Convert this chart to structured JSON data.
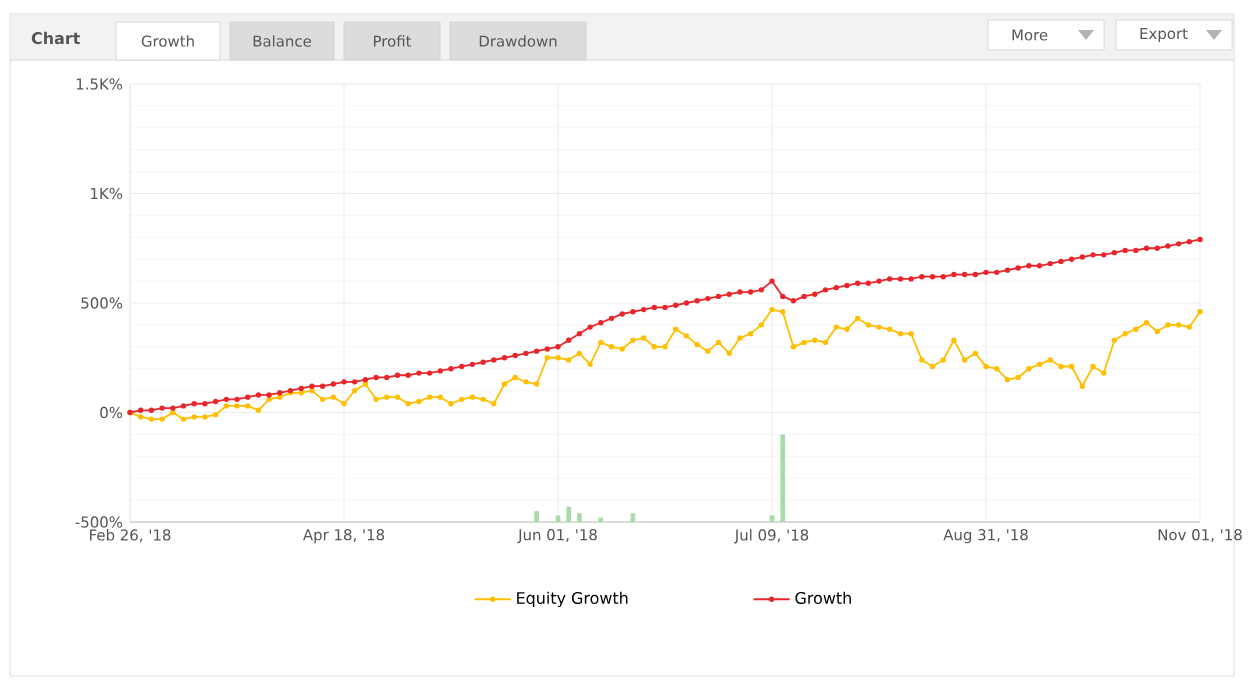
{
  "chart_data": {
    "type": "line",
    "title": "Chart",
    "annotations": [
      "Growth",
      "Balance",
      "Profit",
      "Drawdown",
      "More",
      "Export"
    ],
    "categories": [
      "Feb 26, '18",
      null,
      null,
      null,
      null,
      null,
      null,
      null,
      null,
      null,
      null,
      null,
      null,
      null,
      null,
      null,
      null,
      null,
      null,
      null,
      "Apr 18, '18",
      null,
      null,
      null,
      null,
      null,
      null,
      null,
      null,
      null,
      null,
      null,
      null,
      null,
      null,
      null,
      null,
      null,
      null,
      null,
      "Jun 01, '18",
      null,
      null,
      null,
      null,
      null,
      null,
      null,
      null,
      null,
      null,
      null,
      null,
      null,
      null,
      null,
      null,
      null,
      null,
      null,
      "Jul 09, '18",
      null,
      null,
      null,
      null,
      null,
      null,
      null,
      null,
      null,
      null,
      null,
      null,
      null,
      null,
      null,
      null,
      null,
      null,
      null,
      "Aug 31, '18",
      null,
      null,
      null,
      null,
      null,
      null,
      null,
      null,
      null,
      null,
      null,
      null,
      null,
      null,
      null,
      null,
      null,
      null,
      null,
      "Nov 01, '18"
    ],
    "ylim": [
      -500,
      1500
    ],
    "yticks": [
      {
        "value": -500,
        "label": "-500%"
      },
      {
        "value": 0,
        "label": "0%"
      },
      {
        "value": 500,
        "label": "500%"
      },
      {
        "value": 1000,
        "label": "1K%"
      },
      {
        "value": 1500,
        "label": "1.5K%"
      }
    ],
    "grid": true,
    "legend": "bottom",
    "marker": "circle",
    "series": [
      {
        "name": "Equity Growth",
        "color": "#ffbf00",
        "values": [
          0,
          -20,
          -30,
          -30,
          0,
          -30,
          -20,
          -20,
          -10,
          30,
          30,
          30,
          10,
          60,
          70,
          90,
          90,
          100,
          60,
          70,
          40,
          100,
          130,
          60,
          70,
          70,
          40,
          50,
          70,
          70,
          40,
          60,
          70,
          60,
          40,
          130,
          160,
          140,
          130,
          250,
          250,
          240,
          270,
          220,
          320,
          300,
          290,
          330,
          340,
          300,
          300,
          380,
          350,
          310,
          280,
          320,
          270,
          340,
          360,
          400,
          470,
          460,
          300,
          320,
          330,
          320,
          390,
          380,
          430,
          400,
          390,
          380,
          360,
          360,
          240,
          210,
          240,
          330,
          240,
          270,
          210,
          200,
          150,
          160,
          200,
          220,
          240,
          210,
          210,
          120,
          210,
          180,
          330,
          360,
          380,
          410,
          370,
          400,
          400,
          390,
          460
        ]
      },
      {
        "name": "Growth",
        "color": "#e8262b",
        "values": [
          0,
          10,
          10,
          20,
          20,
          30,
          40,
          40,
          50,
          60,
          60,
          70,
          80,
          80,
          90,
          100,
          110,
          120,
          120,
          130,
          140,
          140,
          150,
          160,
          160,
          170,
          170,
          180,
          180,
          190,
          200,
          210,
          220,
          230,
          240,
          250,
          260,
          270,
          280,
          290,
          300,
          330,
          360,
          390,
          410,
          430,
          450,
          460,
          470,
          480,
          480,
          490,
          500,
          510,
          520,
          530,
          540,
          550,
          550,
          560,
          600,
          530,
          510,
          530,
          540,
          560,
          570,
          580,
          590,
          590,
          600,
          610,
          610,
          610,
          620,
          620,
          620,
          630,
          630,
          630,
          640,
          640,
          650,
          660,
          670,
          670,
          680,
          690,
          700,
          710,
          720,
          720,
          730,
          740,
          740,
          750,
          750,
          760,
          770,
          780,
          790
        ]
      },
      {
        "type": "bar",
        "color": "#a8dba8",
        "base": [
          null,
          null,
          null,
          null,
          null,
          null,
          null,
          null,
          null,
          null,
          null,
          null,
          null,
          null,
          null,
          null,
          null,
          null,
          null,
          null,
          null,
          null,
          null,
          null,
          null,
          null,
          null,
          null,
          null,
          null,
          null,
          null,
          null,
          null,
          null,
          null,
          null,
          null,
          -500,
          null,
          -500,
          -500,
          -500,
          null,
          -500,
          null,
          null,
          -500,
          null,
          null,
          null,
          null,
          null,
          null,
          null,
          null,
          null,
          null,
          null,
          null,
          -500,
          -500,
          null,
          null,
          null,
          null,
          null,
          null,
          null,
          null,
          null,
          null,
          null,
          null,
          null,
          null,
          null,
          null,
          null,
          null,
          null,
          null,
          null,
          null,
          null,
          null,
          null,
          null,
          null,
          null,
          null,
          null,
          null,
          null,
          null,
          null,
          null,
          null,
          null,
          null,
          null
        ],
        "values": [
          null,
          null,
          null,
          null,
          null,
          null,
          null,
          null,
          null,
          null,
          null,
          null,
          null,
          null,
          null,
          null,
          null,
          null,
          null,
          null,
          null,
          null,
          null,
          null,
          null,
          null,
          null,
          null,
          null,
          null,
          null,
          null,
          null,
          null,
          null,
          null,
          null,
          null,
          50,
          null,
          30,
          70,
          40,
          null,
          20,
          null,
          null,
          40,
          null,
          null,
          null,
          null,
          null,
          null,
          null,
          null,
          null,
          null,
          null,
          null,
          30,
          400,
          null,
          null,
          null,
          null,
          null,
          null,
          null,
          null,
          null,
          null,
          null,
          null,
          null,
          null,
          null,
          null,
          null,
          null,
          null,
          null,
          null,
          null,
          null,
          null,
          null,
          null,
          null,
          null,
          null,
          null,
          null,
          null,
          null,
          null,
          null,
          null,
          null,
          null,
          null
        ]
      }
    ]
  }
}
